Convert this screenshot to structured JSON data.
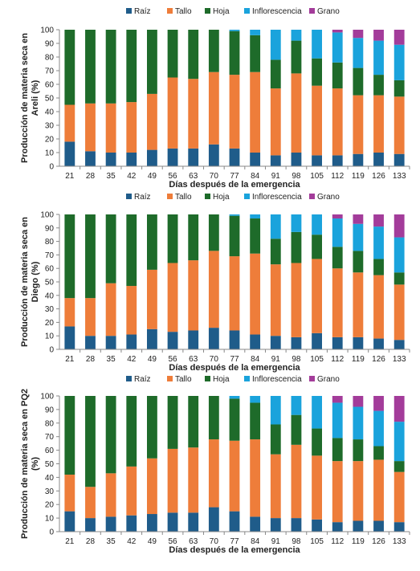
{
  "colors": {
    "Raíz": "#1f5c8a",
    "Tallo": "#ee7d3a",
    "Hoja": "#1e6b2a",
    "Inflorescencia": "#1aa3dc",
    "Grano": "#a33c9a"
  },
  "chart_data": [
    {
      "type": "bar",
      "stacked": true,
      "categories": [
        "21",
        "28",
        "35",
        "42",
        "49",
        "56",
        "63",
        "70",
        "77",
        "84",
        "91",
        "98",
        "105",
        "112",
        "119",
        "126",
        "133"
      ],
      "series": [
        {
          "name": "Raíz",
          "values": [
            18,
            11,
            10,
            10,
            12,
            13,
            13,
            16,
            13,
            10,
            8,
            10,
            8,
            8,
            9,
            10,
            9
          ]
        },
        {
          "name": "Tallo",
          "values": [
            27,
            35,
            36,
            37,
            41,
            52,
            51,
            53,
            54,
            59,
            49,
            58,
            51,
            49,
            43,
            42,
            42
          ]
        },
        {
          "name": "Hoja",
          "values": [
            55,
            54,
            54,
            53,
            47,
            35,
            36,
            31,
            32,
            27,
            21,
            24,
            20,
            19,
            20,
            15,
            12
          ]
        },
        {
          "name": "Inflorescencia",
          "values": [
            0,
            0,
            0,
            0,
            0,
            0,
            0,
            0,
            1,
            4,
            22,
            8,
            21,
            22,
            22,
            25,
            26
          ]
        },
        {
          "name": "Grano",
          "values": [
            0,
            0,
            0,
            0,
            0,
            0,
            0,
            0,
            0,
            0,
            0,
            0,
            0,
            2,
            6,
            8,
            11
          ]
        }
      ],
      "legend": [
        "Raíz",
        "Tallo",
        "Hoja",
        "Inflorescencia",
        "Grano"
      ],
      "xlabel": "Días después de la emergencia",
      "ylabel": [
        "Producción de materia seca en",
        "Areli (%)"
      ],
      "yticks": [
        "0",
        "10",
        "20",
        "30",
        "40",
        "50",
        "60",
        "70",
        "80",
        "90",
        "100"
      ],
      "ylim": [
        0,
        100
      ],
      "legend_position": "top"
    },
    {
      "type": "bar",
      "stacked": true,
      "categories": [
        "21",
        "28",
        "35",
        "42",
        "49",
        "56",
        "63",
        "70",
        "77",
        "84",
        "91",
        "98",
        "105",
        "112",
        "119",
        "126",
        "133"
      ],
      "series": [
        {
          "name": "Raíz",
          "values": [
            17,
            10,
            10,
            11,
            15,
            13,
            14,
            16,
            14,
            11,
            10,
            9,
            12,
            9,
            9,
            8,
            7
          ]
        },
        {
          "name": "Tallo",
          "values": [
            21,
            28,
            39,
            36,
            44,
            51,
            52,
            57,
            55,
            60,
            53,
            55,
            55,
            51,
            48,
            47,
            41
          ]
        },
        {
          "name": "Hoja",
          "values": [
            62,
            62,
            51,
            53,
            41,
            36,
            34,
            27,
            30,
            26,
            19,
            23,
            18,
            16,
            16,
            12,
            9
          ]
        },
        {
          "name": "Inflorescencia",
          "values": [
            0,
            0,
            0,
            0,
            0,
            0,
            0,
            0,
            1,
            3,
            18,
            13,
            15,
            21,
            20,
            24,
            26
          ]
        },
        {
          "name": "Grano",
          "values": [
            0,
            0,
            0,
            0,
            0,
            0,
            0,
            0,
            0,
            0,
            0,
            0,
            0,
            3,
            7,
            9,
            17
          ]
        }
      ],
      "legend": [
        "Raíz",
        "Tallo",
        "Hoja",
        "Inflorescencia",
        "Grano"
      ],
      "xlabel": "Días después de la emergencia",
      "ylabel": [
        "Producción de materia seca en",
        "Diego (%)"
      ],
      "yticks": [
        "0",
        "10",
        "20",
        "30",
        "40",
        "50",
        "60",
        "70",
        "80",
        "90",
        "100"
      ],
      "ylim": [
        0,
        100
      ],
      "legend_position": "top"
    },
    {
      "type": "bar",
      "stacked": true,
      "categories": [
        "21",
        "28",
        "35",
        "42",
        "49",
        "56",
        "63",
        "70",
        "77",
        "84",
        "91",
        "98",
        "105",
        "112",
        "119",
        "126",
        "133"
      ],
      "series": [
        {
          "name": "Raíz",
          "values": [
            15,
            10,
            11,
            12,
            13,
            14,
            14,
            18,
            15,
            11,
            10,
            10,
            9,
            7,
            8,
            8,
            7
          ]
        },
        {
          "name": "Tallo",
          "values": [
            27,
            23,
            32,
            36,
            41,
            47,
            48,
            50,
            52,
            57,
            47,
            54,
            47,
            45,
            44,
            45,
            37
          ]
        },
        {
          "name": "Hoja",
          "values": [
            58,
            67,
            57,
            52,
            46,
            39,
            38,
            32,
            31,
            27,
            22,
            22,
            20,
            17,
            16,
            10,
            8
          ]
        },
        {
          "name": "Inflorescencia",
          "values": [
            0,
            0,
            0,
            0,
            0,
            0,
            0,
            0,
            2,
            5,
            21,
            14,
            24,
            26,
            24,
            26,
            29
          ]
        },
        {
          "name": "Grano",
          "values": [
            0,
            0,
            0,
            0,
            0,
            0,
            0,
            0,
            0,
            0,
            0,
            0,
            0,
            5,
            8,
            11,
            19
          ]
        }
      ],
      "legend": [
        "Raíz",
        "Tallo",
        "Hoja",
        "Inflorescencia",
        "Grano"
      ],
      "xlabel": "Días después de la emergencia",
      "ylabel": [
        "Producción de materia seca en PQ2",
        "(%)"
      ],
      "yticks": [
        "0",
        "10",
        "20",
        "30",
        "40",
        "50",
        "60",
        "70",
        "80",
        "90",
        "100"
      ],
      "ylim": [
        0,
        100
      ],
      "legend_position": "top"
    }
  ]
}
